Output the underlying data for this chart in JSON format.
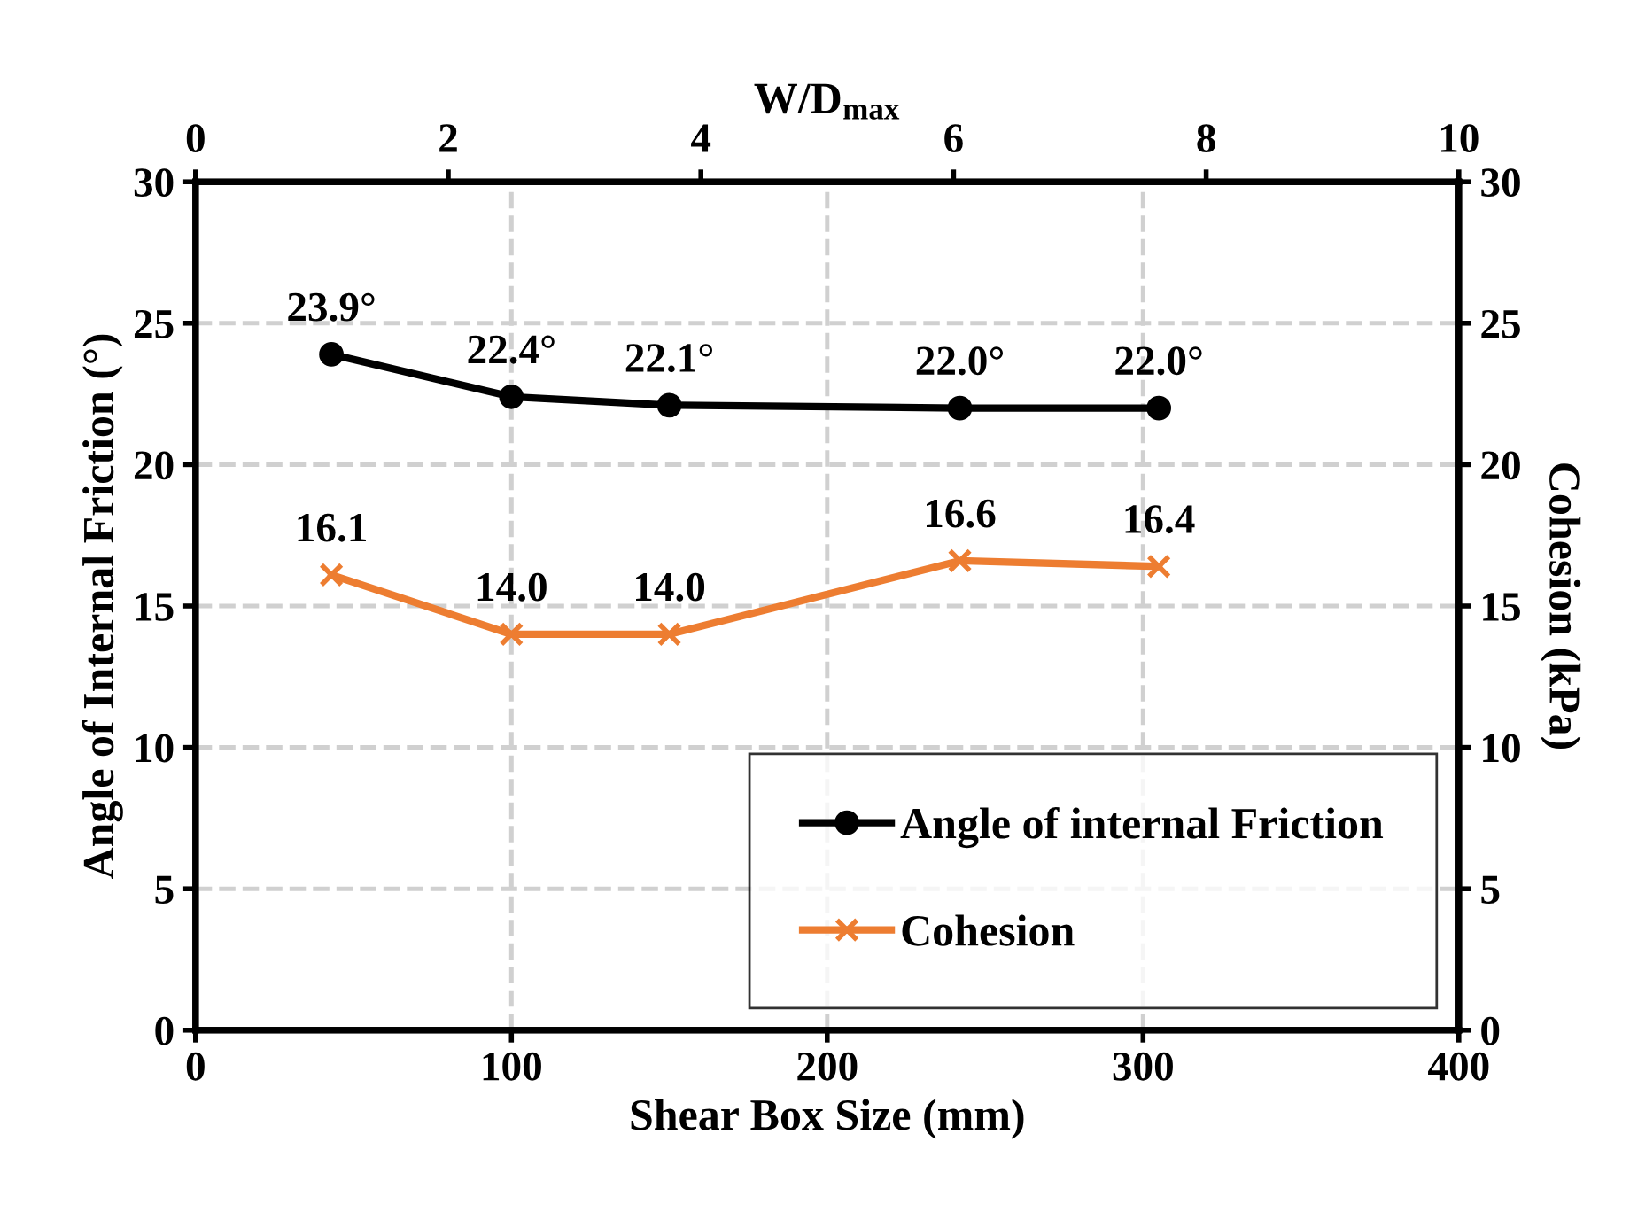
{
  "chart_data": {
    "type": "line",
    "xlabel": "Shear Box Size (mm)",
    "ylabel": "Angle of Internal Friction (°)",
    "y2label": "Cohesion (kPa)",
    "x2label": "W/D$_{max}$",
    "series": [
      {
        "name": "Angle of internal Friction",
        "color": "#000000",
        "marker": "circle",
        "x": [
          43,
          100,
          150,
          242,
          305
        ],
        "values": [
          23.9,
          22.4,
          22.1,
          22.0,
          22.0
        ],
        "value_labels": [
          "23.9°",
          "22.4°",
          "22.1°",
          "22.0°",
          "22.0°"
        ]
      },
      {
        "name": "Cohesion",
        "color": "#ed7d31",
        "marker": "cross",
        "x": [
          43,
          100,
          150,
          242,
          305
        ],
        "values": [
          16.1,
          14.0,
          14.0,
          16.6,
          16.4
        ],
        "value_labels": [
          "16.1",
          "14.0",
          "14.0",
          "16.6",
          "16.4"
        ]
      }
    ],
    "xlim": [
      0,
      400
    ],
    "xticks": [
      0,
      100,
      200,
      300,
      400
    ],
    "x2lim": [
      0,
      10
    ],
    "x2ticks": [
      0,
      2,
      4,
      6,
      8,
      10
    ],
    "ylim": [
      0,
      30
    ],
    "yticks": [
      0,
      5,
      10,
      15,
      20,
      25,
      30
    ],
    "y2lim": [
      0,
      30
    ],
    "y2ticks": [
      0,
      5,
      10,
      15,
      20,
      25,
      30
    ],
    "grid": true,
    "legend": "bottom right",
    "line_style": "solid"
  }
}
